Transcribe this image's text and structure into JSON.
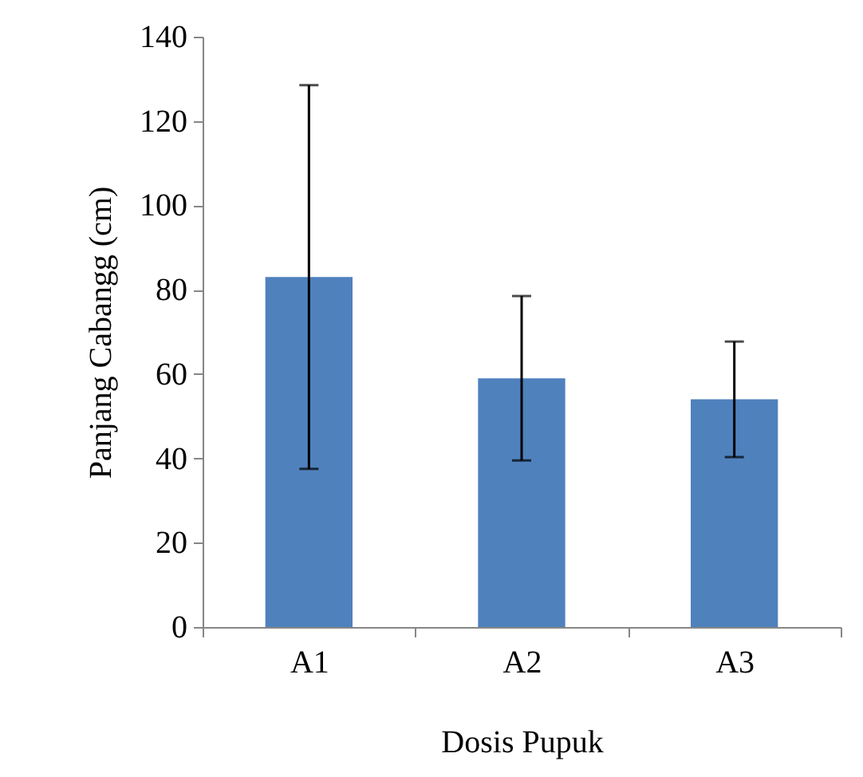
{
  "chart_data": {
    "type": "bar",
    "xlabel": "Dosis Pupuk",
    "ylabel": "Panjang Cabangg (cm)",
    "categories": [
      "A1",
      "A2",
      "A3"
    ],
    "values": [
      83,
      59,
      54
    ],
    "errors": [
      45.5,
      19.5,
      13.7
    ],
    "color": "#4f81bd",
    "ylim": [
      0,
      140
    ],
    "yticks": [
      0,
      20,
      40,
      60,
      80,
      100,
      120,
      140
    ],
    "grid": false
  }
}
